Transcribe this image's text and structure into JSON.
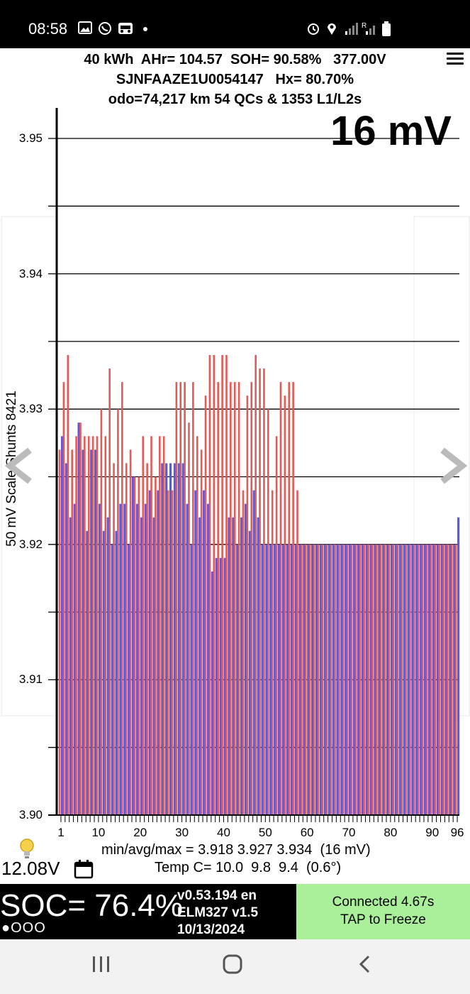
{
  "status_bar": {
    "time": "08:58",
    "left_icons": [
      "image-icon",
      "viber-icon",
      "car-app-icon",
      "dot-icon"
    ],
    "right_icons": [
      "alarm-icon",
      "location-icon",
      "signal-icon",
      "roaming-signal-icon",
      "battery-icon"
    ]
  },
  "header": {
    "line1": "40 kWh  AHr= 104.57  SOH= 90.58%   377.00V",
    "line2": "SJNFAAZE1U0054147   Hx= 80.70%",
    "line3": "odo=74,217 km 54 QCs & 1353 L1/L2s"
  },
  "spread_display": "16 mV",
  "chart_data": {
    "type": "bar",
    "ylabel": "50 mV Scale  Shunts 8421",
    "ylim": [
      3.9,
      3.95
    ],
    "yticks": [
      "3.90",
      "3.91",
      "3.92",
      "3.93",
      "3.94",
      "3.95"
    ],
    "grid": true,
    "xticks": [
      "1",
      "10",
      "20",
      "30",
      "40",
      "50",
      "60",
      "70",
      "80",
      "90",
      "96"
    ],
    "categories": [
      1,
      2,
      3,
      4,
      5,
      6,
      7,
      8,
      9,
      10,
      11,
      12,
      13,
      14,
      15,
      16,
      17,
      18,
      19,
      20,
      21,
      22,
      23,
      24,
      25,
      26,
      27,
      28,
      29,
      30,
      31,
      32,
      33,
      34,
      35,
      36,
      37,
      38,
      39,
      40,
      41,
      42,
      43,
      44,
      45,
      46,
      47,
      48,
      49,
      50,
      51,
      52,
      53,
      54,
      55,
      56,
      57,
      58,
      59,
      60,
      61,
      62,
      63,
      64,
      65,
      66,
      67,
      68,
      69,
      70,
      71,
      72,
      73,
      74,
      75,
      76,
      77,
      78,
      79,
      80,
      81,
      82,
      83,
      84,
      85,
      86,
      87,
      88,
      89,
      90,
      91,
      92,
      93,
      94,
      95,
      96
    ],
    "series": [
      {
        "color": "#e35b57",
        "values": [
          3.927,
          3.932,
          3.934,
          3.927,
          3.928,
          3.929,
          3.928,
          3.928,
          3.928,
          3.928,
          3.93,
          3.928,
          3.933,
          3.926,
          3.93,
          3.932,
          3.926,
          3.927,
          3.925,
          3.925,
          3.928,
          3.926,
          3.928,
          3.925,
          3.928,
          3.928,
          3.924,
          3.924,
          3.932,
          3.932,
          3.932,
          3.929,
          3.932,
          3.928,
          3.927,
          3.931,
          3.934,
          3.934,
          3.932,
          3.934,
          3.934,
          3.932,
          3.932,
          3.932,
          3.924,
          3.931,
          3.932,
          3.934,
          3.933,
          3.933,
          3.93,
          3.924,
          3.928,
          3.932,
          3.931,
          3.932,
          3.932,
          3.924,
          3.92,
          3.92,
          3.92,
          3.92,
          3.92,
          3.92,
          3.92,
          3.92,
          3.92,
          3.92,
          3.92,
          3.92,
          3.92,
          3.92,
          3.92,
          3.92,
          3.92,
          3.92,
          3.92,
          3.92,
          3.92,
          3.92,
          3.92,
          3.92,
          3.92,
          3.92,
          3.92,
          3.92,
          3.92,
          3.92,
          3.92,
          3.92,
          3.92,
          3.92,
          3.92,
          3.92,
          3.92,
          3.92
        ]
      },
      {
        "color": "#5a5ae0",
        "values": [
          3.928,
          3.926,
          3.922,
          3.923,
          3.929,
          3.927,
          3.921,
          3.927,
          3.927,
          3.923,
          3.921,
          3.922,
          3.92,
          3.921,
          3.923,
          3.923,
          3.92,
          3.925,
          3.923,
          3.922,
          3.923,
          3.924,
          3.922,
          3.924,
          3.926,
          3.926,
          3.926,
          3.926,
          3.926,
          3.926,
          3.923,
          3.92,
          3.924,
          3.922,
          3.924,
          3.923,
          3.918,
          3.919,
          3.919,
          3.919,
          3.922,
          3.922,
          3.92,
          3.922,
          3.923,
          3.921,
          3.924,
          3.922,
          3.92,
          3.92,
          3.92,
          3.92,
          3.92,
          3.92,
          3.92,
          3.92,
          3.92,
          3.92,
          3.92,
          3.92,
          3.92,
          3.92,
          3.92,
          3.92,
          3.92,
          3.92,
          3.92,
          3.92,
          3.92,
          3.92,
          3.92,
          3.92,
          3.92,
          3.92,
          3.92,
          3.92,
          3.92,
          3.92,
          3.92,
          3.92,
          3.92,
          3.92,
          3.92,
          3.92,
          3.92,
          3.92,
          3.92,
          3.92,
          3.92,
          3.92,
          3.92,
          3.92,
          3.92,
          3.92,
          3.92,
          3.922
        ]
      }
    ]
  },
  "stats": {
    "minavgmax": "min/avg/max = 3.918 3.927 3.934  (16 mV)",
    "temp": "Temp C= 10.0  9.8  9.4  (0.6°)"
  },
  "aux_voltage": "12.08V",
  "soc": "SOC= 76.4%",
  "indicator_dots": "●OOO",
  "version": {
    "line1": "v0.53.194 en",
    "line2": "ELM327 v1.5",
    "line3": "10/13/2024"
  },
  "connection": {
    "line1": "Connected 4.67s",
    "line2": "TAP to Freeze"
  },
  "colors": {
    "cell_red": "#e35b57",
    "cell_blue": "#5a5ae0",
    "connected_bg": "#aaf09a"
  }
}
